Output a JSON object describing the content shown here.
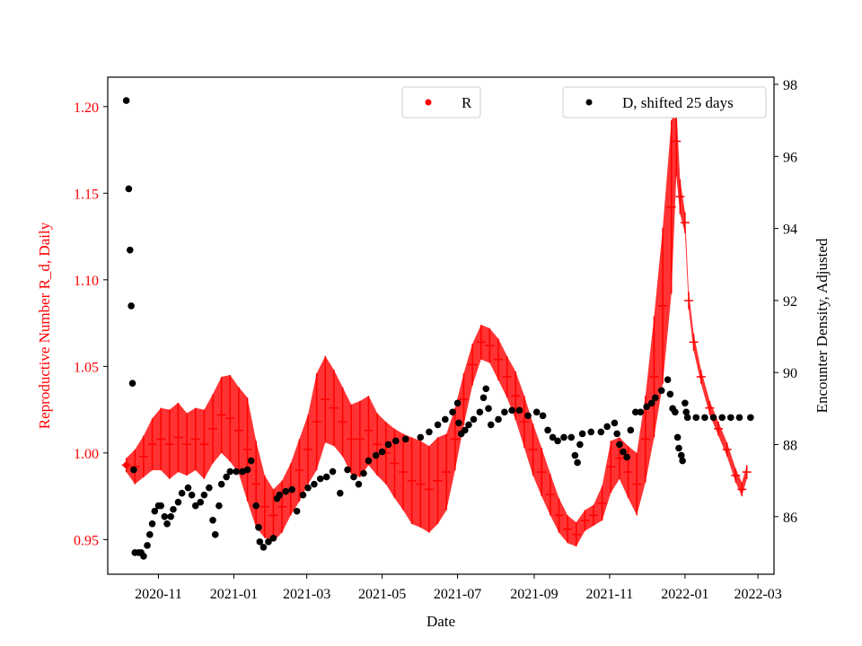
{
  "chart_data": {
    "type": "scatter",
    "xlabel": "Date",
    "ylabel_left": "Reproductive Number R_d, Daily",
    "ylabel_right": "Encounter Density, Adjusted",
    "x_ticks": [
      "2020-11",
      "2021-01",
      "2021-03",
      "2021-05",
      "2021-07",
      "2021-09",
      "2021-11",
      "2022-01",
      "2022-03"
    ],
    "xlim": [
      "2020-09-21",
      "2022-03-14"
    ],
    "ylim_left": [
      0.93,
      1.217
    ],
    "yticks_left": [
      "0.95",
      "1.00",
      "1.05",
      "1.10",
      "1.15",
      "1.20"
    ],
    "ylim_right": [
      84.4,
      98.2
    ],
    "yticks_right": [
      "86",
      "88",
      "90",
      "92",
      "94",
      "96",
      "98"
    ],
    "grid": false,
    "colors": {
      "R": "#ff0000",
      "D": "#000000",
      "left_axis_text": "#ff0000"
    },
    "legend_R": {
      "label": "R",
      "placement": "top-center"
    },
    "legend_D": {
      "label": "D, shifted 25 days",
      "placement": "top-right"
    },
    "series_R": {
      "name": "R",
      "axis": "left",
      "points": [
        [
          "2020-10-06",
          0.993,
          0.004
        ],
        [
          "2020-10-13",
          0.992,
          0.01
        ],
        [
          "2020-10-20",
          0.998,
          0.012
        ],
        [
          "2020-10-27",
          1.005,
          0.015
        ],
        [
          "2020-11-03",
          1.008,
          0.018
        ],
        [
          "2020-11-10",
          1.005,
          0.02
        ],
        [
          "2020-11-17",
          1.009,
          0.02
        ],
        [
          "2020-11-24",
          1.005,
          0.018
        ],
        [
          "2020-12-01",
          1.008,
          0.018
        ],
        [
          "2020-12-08",
          1.005,
          0.02
        ],
        [
          "2020-12-15",
          1.014,
          0.02
        ],
        [
          "2020-12-22",
          1.022,
          0.022
        ],
        [
          "2020-12-29",
          1.02,
          0.025
        ],
        [
          "2021-01-05",
          1.013,
          0.025
        ],
        [
          "2021-01-12",
          1.002,
          0.03
        ],
        [
          "2021-01-19",
          0.982,
          0.025
        ],
        [
          "2021-01-26",
          0.969,
          0.018
        ],
        [
          "2021-02-02",
          0.964,
          0.015
        ],
        [
          "2021-02-09",
          0.969,
          0.015
        ],
        [
          "2021-02-16",
          0.979,
          0.015
        ],
        [
          "2021-02-23",
          0.99,
          0.018
        ],
        [
          "2021-03-02",
          1.002,
          0.02
        ],
        [
          "2021-03-09",
          1.018,
          0.028
        ],
        [
          "2021-03-16",
          1.031,
          0.025
        ],
        [
          "2021-03-23",
          1.026,
          0.022
        ],
        [
          "2021-03-30",
          1.018,
          0.02
        ],
        [
          "2021-04-06",
          1.008,
          0.02
        ],
        [
          "2021-04-13",
          1.008,
          0.022
        ],
        [
          "2021-04-20",
          1.013,
          0.02
        ],
        [
          "2021-04-27",
          1.005,
          0.018
        ],
        [
          "2021-05-04",
          1.0,
          0.018
        ],
        [
          "2021-05-11",
          0.994,
          0.02
        ],
        [
          "2021-05-18",
          0.989,
          0.022
        ],
        [
          "2021-05-25",
          0.984,
          0.025
        ],
        [
          "2021-06-01",
          0.982,
          0.025
        ],
        [
          "2021-06-08",
          0.979,
          0.025
        ],
        [
          "2021-06-15",
          0.984,
          0.025
        ],
        [
          "2021-06-22",
          0.989,
          0.022
        ],
        [
          "2021-06-29",
          1.008,
          0.018
        ],
        [
          "2021-07-06",
          1.031,
          0.015
        ],
        [
          "2021-07-13",
          1.051,
          0.012
        ],
        [
          "2021-07-20",
          1.064,
          0.01
        ],
        [
          "2021-07-27",
          1.062,
          0.01
        ],
        [
          "2021-08-03",
          1.054,
          0.012
        ],
        [
          "2021-08-10",
          1.044,
          0.012
        ],
        [
          "2021-08-17",
          1.033,
          0.014
        ],
        [
          "2021-08-24",
          1.018,
          0.015
        ],
        [
          "2021-08-31",
          1.002,
          0.015
        ],
        [
          "2021-09-07",
          0.989,
          0.014
        ],
        [
          "2021-09-14",
          0.976,
          0.012
        ],
        [
          "2021-09-21",
          0.964,
          0.01
        ],
        [
          "2021-09-28",
          0.956,
          0.008
        ],
        [
          "2021-10-05",
          0.953,
          0.007
        ],
        [
          "2021-10-12",
          0.961,
          0.006
        ],
        [
          "2021-10-19",
          0.964,
          0.006
        ],
        [
          "2021-10-26",
          0.971,
          0.01
        ],
        [
          "2021-11-02",
          0.992,
          0.015
        ],
        [
          "2021-11-09",
          0.997,
          0.012
        ],
        [
          "2021-11-16",
          0.989,
          0.015
        ],
        [
          "2021-11-23",
          0.982,
          0.018
        ],
        [
          "2021-11-30",
          1.008,
          0.025
        ],
        [
          "2021-12-07",
          1.044,
          0.035
        ],
        [
          "2021-12-14",
          1.085,
          0.045
        ],
        [
          "2021-12-21",
          1.142,
          0.05
        ],
        [
          "2021-12-25",
          1.18,
          0.02
        ],
        [
          "2021-12-28",
          1.148,
          0.01
        ],
        [
          "2022-01-01",
          1.133,
          0.006
        ],
        [
          "2022-01-04",
          1.088,
          0.005
        ],
        [
          "2022-01-08",
          1.064,
          0.005
        ],
        [
          "2022-01-14",
          1.044,
          0.004
        ],
        [
          "2022-01-21",
          1.026,
          0.004
        ],
        [
          "2022-01-28",
          1.014,
          0.004
        ],
        [
          "2022-02-04",
          1.002,
          0.004
        ],
        [
          "2022-02-11",
          0.987,
          0.004
        ],
        [
          "2022-02-16",
          0.979,
          0.004
        ],
        [
          "2022-02-20",
          0.989,
          0.004
        ]
      ]
    },
    "series_D": {
      "name": "D, shifted 25 days",
      "axis": "right",
      "points": [
        [
          "2020-10-06",
          97.55
        ],
        [
          "2020-10-08",
          95.1
        ],
        [
          "2020-10-09",
          93.4
        ],
        [
          "2020-10-10",
          91.85
        ],
        [
          "2020-10-11",
          89.7
        ],
        [
          "2020-10-12",
          87.3
        ],
        [
          "2020-10-13",
          85.0
        ],
        [
          "2020-10-16",
          85.0
        ],
        [
          "2020-10-18",
          85.0
        ],
        [
          "2020-10-20",
          84.9
        ],
        [
          "2020-10-23",
          85.2
        ],
        [
          "2020-10-25",
          85.5
        ],
        [
          "2020-10-27",
          85.8
        ],
        [
          "2020-10-29",
          86.15
        ],
        [
          "2020-11-01",
          86.3
        ],
        [
          "2020-11-03",
          86.3
        ],
        [
          "2020-11-06",
          86.0
        ],
        [
          "2020-11-08",
          85.8
        ],
        [
          "2020-11-11",
          86.0
        ],
        [
          "2020-11-13",
          86.2
        ],
        [
          "2020-11-17",
          86.4
        ],
        [
          "2020-11-20",
          86.65
        ],
        [
          "2020-11-25",
          86.8
        ],
        [
          "2020-11-28",
          86.6
        ],
        [
          "2020-12-01",
          86.3
        ],
        [
          "2020-12-05",
          86.4
        ],
        [
          "2020-12-08",
          86.6
        ],
        [
          "2020-12-12",
          86.8
        ],
        [
          "2020-12-15",
          85.9
        ],
        [
          "2020-12-17",
          85.5
        ],
        [
          "2020-12-20",
          86.3
        ],
        [
          "2020-12-22",
          86.9
        ],
        [
          "2020-12-26",
          87.1
        ],
        [
          "2020-12-29",
          87.25
        ],
        [
          "2021-01-03",
          87.25
        ],
        [
          "2021-01-08",
          87.25
        ],
        [
          "2021-01-12",
          87.3
        ],
        [
          "2021-01-15",
          87.55
        ],
        [
          "2021-01-19",
          86.3
        ],
        [
          "2021-01-21",
          85.7
        ],
        [
          "2021-01-22",
          85.3
        ],
        [
          "2021-01-25",
          85.15
        ],
        [
          "2021-01-29",
          85.3
        ],
        [
          "2021-02-02",
          85.4
        ],
        [
          "2021-02-05",
          86.5
        ],
        [
          "2021-02-07",
          86.6
        ],
        [
          "2021-02-12",
          86.7
        ],
        [
          "2021-02-17",
          86.75
        ],
        [
          "2021-02-21",
          86.15
        ],
        [
          "2021-02-26",
          86.6
        ],
        [
          "2021-03-02",
          86.8
        ],
        [
          "2021-03-07",
          86.9
        ],
        [
          "2021-03-12",
          87.05
        ],
        [
          "2021-03-17",
          87.1
        ],
        [
          "2021-03-22",
          87.25
        ],
        [
          "2021-03-28",
          86.65
        ],
        [
          "2021-04-03",
          87.3
        ],
        [
          "2021-04-08",
          87.1
        ],
        [
          "2021-04-12",
          86.9
        ],
        [
          "2021-04-16",
          87.2
        ],
        [
          "2021-04-20",
          87.55
        ],
        [
          "2021-04-26",
          87.7
        ],
        [
          "2021-05-01",
          87.8
        ],
        [
          "2021-05-06",
          88.0
        ],
        [
          "2021-05-12",
          88.1
        ],
        [
          "2021-05-20",
          88.15
        ],
        [
          "2021-06-01",
          88.2
        ],
        [
          "2021-06-08",
          88.35
        ],
        [
          "2021-06-15",
          88.55
        ],
        [
          "2021-06-21",
          88.7
        ],
        [
          "2021-06-27",
          88.9
        ],
        [
          "2021-07-01",
          89.15
        ],
        [
          "2021-07-02",
          88.6
        ],
        [
          "2021-07-04",
          88.3
        ],
        [
          "2021-07-07",
          88.4
        ],
        [
          "2021-07-10",
          88.55
        ],
        [
          "2021-07-14",
          88.7
        ],
        [
          "2021-07-19",
          88.9
        ],
        [
          "2021-07-22",
          89.3
        ],
        [
          "2021-07-24",
          89.55
        ],
        [
          "2021-07-26",
          89.0
        ],
        [
          "2021-07-28",
          88.55
        ],
        [
          "2021-08-03",
          88.7
        ],
        [
          "2021-08-08",
          88.9
        ],
        [
          "2021-08-14",
          88.95
        ],
        [
          "2021-08-20",
          88.95
        ],
        [
          "2021-08-27",
          88.8
        ],
        [
          "2021-09-03",
          88.9
        ],
        [
          "2021-09-08",
          88.8
        ],
        [
          "2021-09-12",
          88.4
        ],
        [
          "2021-09-16",
          88.2
        ],
        [
          "2021-09-20",
          88.1
        ],
        [
          "2021-09-25",
          88.2
        ],
        [
          "2021-10-01",
          88.2
        ],
        [
          "2021-10-04",
          87.7
        ],
        [
          "2021-10-06",
          87.5
        ],
        [
          "2021-10-08",
          88.0
        ],
        [
          "2021-10-10",
          88.3
        ],
        [
          "2021-10-17",
          88.35
        ],
        [
          "2021-10-25",
          88.35
        ],
        [
          "2021-10-30",
          88.5
        ],
        [
          "2021-11-05",
          88.6
        ],
        [
          "2021-11-07",
          88.3
        ],
        [
          "2021-11-09",
          88.0
        ],
        [
          "2021-11-12",
          87.8
        ],
        [
          "2021-11-15",
          87.65
        ],
        [
          "2021-11-18",
          88.4
        ],
        [
          "2021-11-22",
          88.9
        ],
        [
          "2021-11-26",
          88.9
        ],
        [
          "2021-12-01",
          89.05
        ],
        [
          "2021-12-05",
          89.15
        ],
        [
          "2021-12-08",
          89.3
        ],
        [
          "2021-12-13",
          89.5
        ],
        [
          "2021-12-18",
          89.8
        ],
        [
          "2021-12-20",
          89.4
        ],
        [
          "2021-12-22",
          89.0
        ],
        [
          "2021-12-24",
          88.9
        ],
        [
          "2021-12-26",
          88.2
        ],
        [
          "2021-12-27",
          87.9
        ],
        [
          "2021-12-29",
          87.7
        ],
        [
          "2021-12-30",
          87.55
        ],
        [
          "2022-01-01",
          89.15
        ],
        [
          "2022-01-02",
          88.9
        ],
        [
          "2022-01-03",
          88.75
        ],
        [
          "2022-01-10",
          88.75
        ],
        [
          "2022-01-17",
          88.75
        ],
        [
          "2022-01-24",
          88.75
        ],
        [
          "2022-01-31",
          88.75
        ],
        [
          "2022-02-07",
          88.75
        ],
        [
          "2022-02-14",
          88.75
        ],
        [
          "2022-02-23",
          88.75
        ]
      ]
    }
  }
}
